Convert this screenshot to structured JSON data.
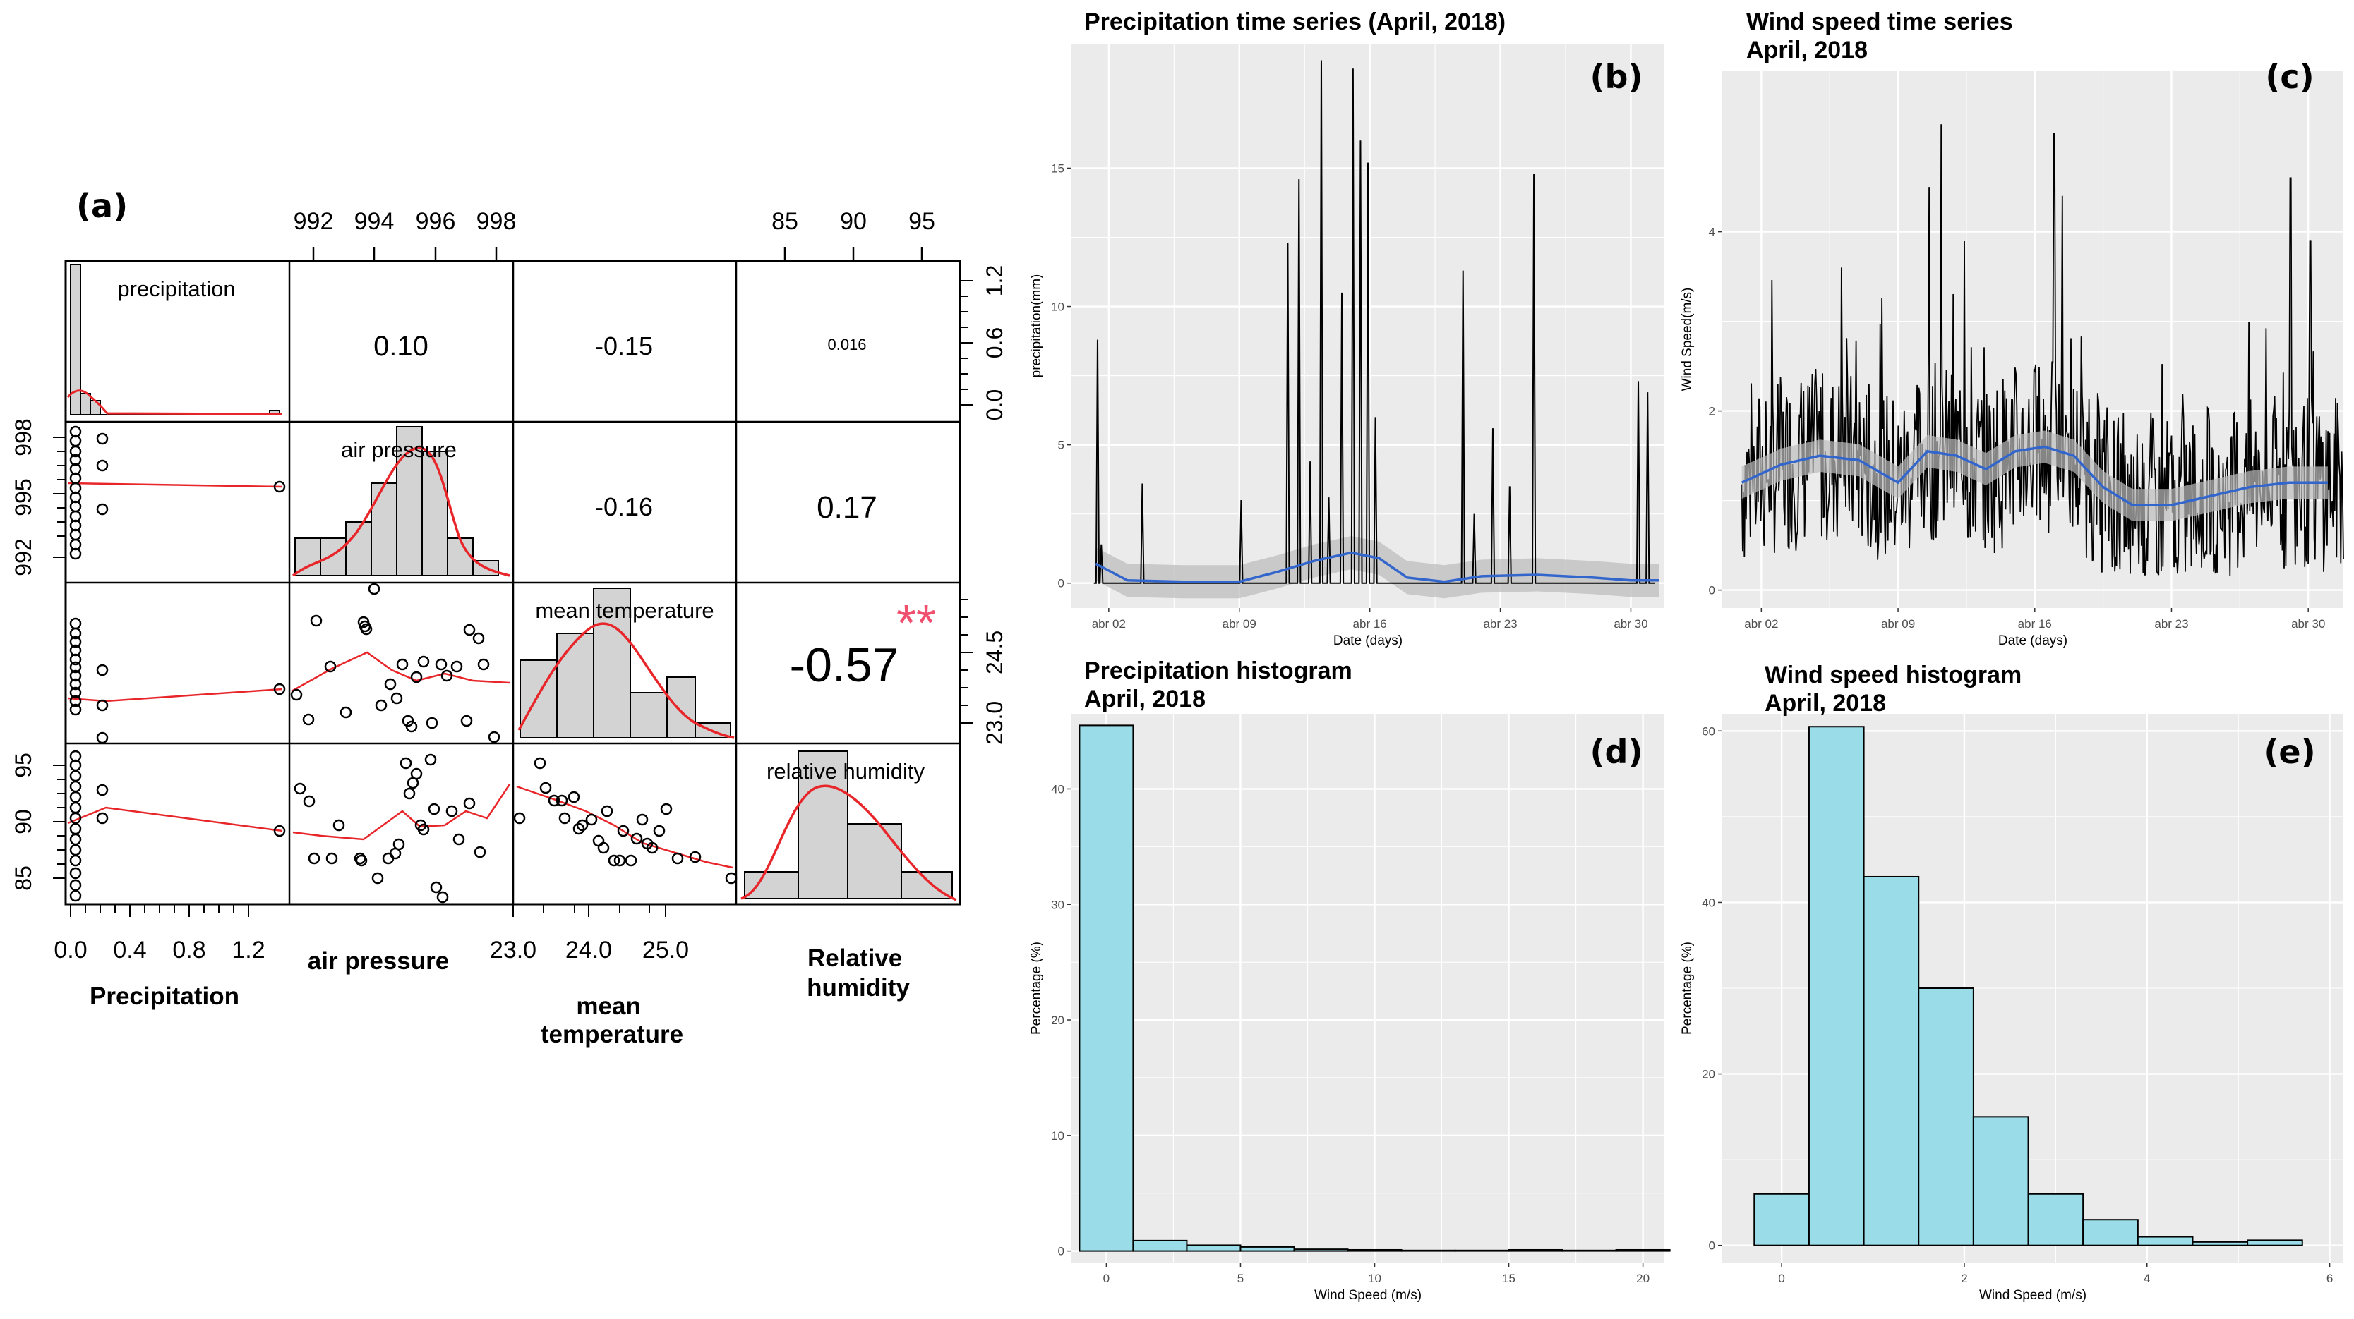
{
  "panel_a": {
    "label": "(a)",
    "diagonal_labels": [
      "precipitation",
      "air pressure",
      "mean temperature",
      "relative humidity"
    ],
    "variable_labels": [
      "Precipitation",
      "air pressure",
      "mean\ntemperature",
      "Relative\nhumidity"
    ],
    "correlations": [
      {
        "pair": "precipitation-air pressure",
        "value": "0.10"
      },
      {
        "pair": "precipitation-mean temperature",
        "value": "-0.15"
      },
      {
        "pair": "precipitation-relative humidity",
        "value": "0.016"
      },
      {
        "pair": "air pressure-mean temperature",
        "value": "-0.16"
      },
      {
        "pair": "air pressure-relative humidity",
        "value": "0.17"
      },
      {
        "pair": "mean temperature-relative humidity",
        "value": "-0.57"
      }
    ],
    "significance": "**",
    "top_ticks_air_pressure": [
      "992",
      "994",
      "996",
      "998"
    ],
    "top_ticks_humidity": [
      "85",
      "90",
      "95"
    ],
    "right_ticks_precip": [
      "0.0",
      "0.6",
      "1.2"
    ],
    "right_ticks_temp": [
      "23.0",
      "24.5"
    ],
    "left_ticks_pressure": [
      "992",
      "995",
      "998"
    ],
    "left_ticks_humidity": [
      "85",
      "90",
      "95"
    ],
    "bottom_ticks_precip": [
      "0.0",
      "0.4",
      "0.8",
      "1.2"
    ],
    "bottom_ticks_temp": [
      "23.0",
      "24.0",
      "25.0"
    ],
    "colors": {
      "smooth": "#e8262a",
      "hist": "#d3d3d3",
      "stars": "#f0506e"
    }
  },
  "chart_data": [
    {
      "id": "b",
      "type": "line",
      "label": "(b)",
      "title": "Precipitation time series (April, 2018)",
      "xlabel": "Date (days)",
      "ylabel": "precipitation(mm)",
      "xticks": [
        "abr 02",
        "abr 09",
        "abr 16",
        "abr 23",
        "abr 30"
      ],
      "xtick_days": [
        2,
        9,
        16,
        23,
        30
      ],
      "yticks": [
        0,
        5,
        10,
        15
      ],
      "xlim": [
        0,
        31.8
      ],
      "ylim": [
        -0.9,
        19.5
      ],
      "spikes": [
        [
          1.4,
          8.8
        ],
        [
          1.6,
          1.4
        ],
        [
          3.8,
          3.6
        ],
        [
          9.1,
          3.0
        ],
        [
          11.6,
          12.3
        ],
        [
          12.2,
          14.6
        ],
        [
          12.8,
          4.4
        ],
        [
          13.4,
          18.9
        ],
        [
          13.8,
          3.1
        ],
        [
          14.5,
          10.5
        ],
        [
          15.1,
          18.6
        ],
        [
          15.5,
          16.0
        ],
        [
          15.9,
          15.2
        ],
        [
          16.3,
          6.0
        ],
        [
          21.0,
          11.3
        ],
        [
          21.6,
          2.5
        ],
        [
          22.6,
          5.6
        ],
        [
          23.5,
          3.5
        ],
        [
          24.8,
          14.8
        ],
        [
          30.4,
          7.3
        ],
        [
          30.9,
          6.9
        ]
      ],
      "smooth": [
        [
          1.3,
          0.7
        ],
        [
          3,
          0.1
        ],
        [
          6,
          0.05
        ],
        [
          9,
          0.05
        ],
        [
          11,
          0.4
        ],
        [
          13,
          0.8
        ],
        [
          15,
          1.1
        ],
        [
          16.5,
          0.9
        ],
        [
          18,
          0.2
        ],
        [
          20,
          0.05
        ],
        [
          22,
          0.25
        ],
        [
          25,
          0.3
        ],
        [
          28,
          0.2
        ],
        [
          30,
          0.1
        ],
        [
          31.5,
          0.1
        ]
      ],
      "colors": {
        "line": "#000000",
        "smooth": "#3366cc",
        "band": "#bdbdbd",
        "panel": "#ebebeb"
      }
    },
    {
      "id": "c",
      "type": "line",
      "label": "(c)",
      "title": "Wind speed time series\nApril, 2018",
      "xlabel": "Date (days)",
      "ylabel": "Wind Speed(m/s)",
      "xticks": [
        "abr 02",
        "abr 09",
        "abr 16",
        "abr 23",
        "abr 30"
      ],
      "xtick_days": [
        2,
        9,
        16,
        23,
        30
      ],
      "yticks": [
        0,
        2,
        4
      ],
      "xlim": [
        0,
        31.8
      ],
      "ylim": [
        -0.2,
        5.8
      ],
      "smooth": [
        [
          1,
          1.2
        ],
        [
          3,
          1.4
        ],
        [
          5,
          1.5
        ],
        [
          7,
          1.45
        ],
        [
          9,
          1.2
        ],
        [
          10.5,
          1.55
        ],
        [
          12,
          1.5
        ],
        [
          13.5,
          1.35
        ],
        [
          15,
          1.55
        ],
        [
          16.5,
          1.6
        ],
        [
          18,
          1.5
        ],
        [
          19.5,
          1.15
        ],
        [
          21,
          0.95
        ],
        [
          23,
          0.95
        ],
        [
          25,
          1.05
        ],
        [
          27,
          1.15
        ],
        [
          29,
          1.2
        ],
        [
          31,
          1.2
        ]
      ],
      "peaks": [
        [
          11.2,
          5.2
        ],
        [
          17.0,
          5.1
        ],
        [
          10.6,
          4.5
        ],
        [
          29.1,
          4.6
        ],
        [
          30.1,
          3.9
        ],
        [
          12.4,
          3.9
        ],
        [
          6.1,
          3.6
        ],
        [
          17.4,
          4.4
        ]
      ],
      "colors": {
        "line": "#000000",
        "smooth": "#3366cc",
        "band": "#bdbdbd",
        "panel": "#ebebeb"
      }
    },
    {
      "id": "d",
      "type": "bar",
      "label": "(d)",
      "title": "Precipitation histogram\nApril, 2018",
      "xlabel": "Wind Speed (m/s)",
      "ylabel": "Percentage (%)",
      "xticks": [
        0,
        5,
        10,
        15,
        20
      ],
      "yticks": [
        0,
        10,
        20,
        30,
        40
      ],
      "xlim": [
        -1.3,
        20.8
      ],
      "ylim": [
        -1,
        46.5
      ],
      "bin_edges": [
        -1,
        1,
        3,
        5,
        7,
        9,
        11,
        13,
        15,
        17,
        19,
        21
      ],
      "values": [
        45.5,
        0.9,
        0.5,
        0.35,
        0.15,
        0.1,
        0.05,
        0.05,
        0.1,
        0.05,
        0.1
      ],
      "colors": {
        "bar": "#9adce8",
        "edge": "#000000",
        "panel": "#ebebeb"
      }
    },
    {
      "id": "e",
      "type": "bar",
      "label": "(e)",
      "title": "Wind speed histogram\nApril, 2018",
      "xlabel": "Wind Speed (m/s)",
      "ylabel": "Percentage (%)",
      "xticks": [
        0,
        2,
        4,
        6
      ],
      "yticks": [
        0,
        20,
        40,
        60
      ],
      "xlim": [
        -0.65,
        6.15
      ],
      "ylim": [
        -2,
        62
      ],
      "bin_edges": [
        -0.3,
        0.3,
        0.9,
        1.5,
        2.1,
        2.7,
        3.3,
        3.9,
        4.5,
        5.1,
        5.7
      ],
      "values": [
        6,
        60.5,
        43,
        30,
        15,
        6,
        3,
        1,
        0.4,
        0.6
      ],
      "colors": {
        "bar": "#9adce8",
        "edge": "#000000",
        "panel": "#ebebeb"
      }
    }
  ]
}
